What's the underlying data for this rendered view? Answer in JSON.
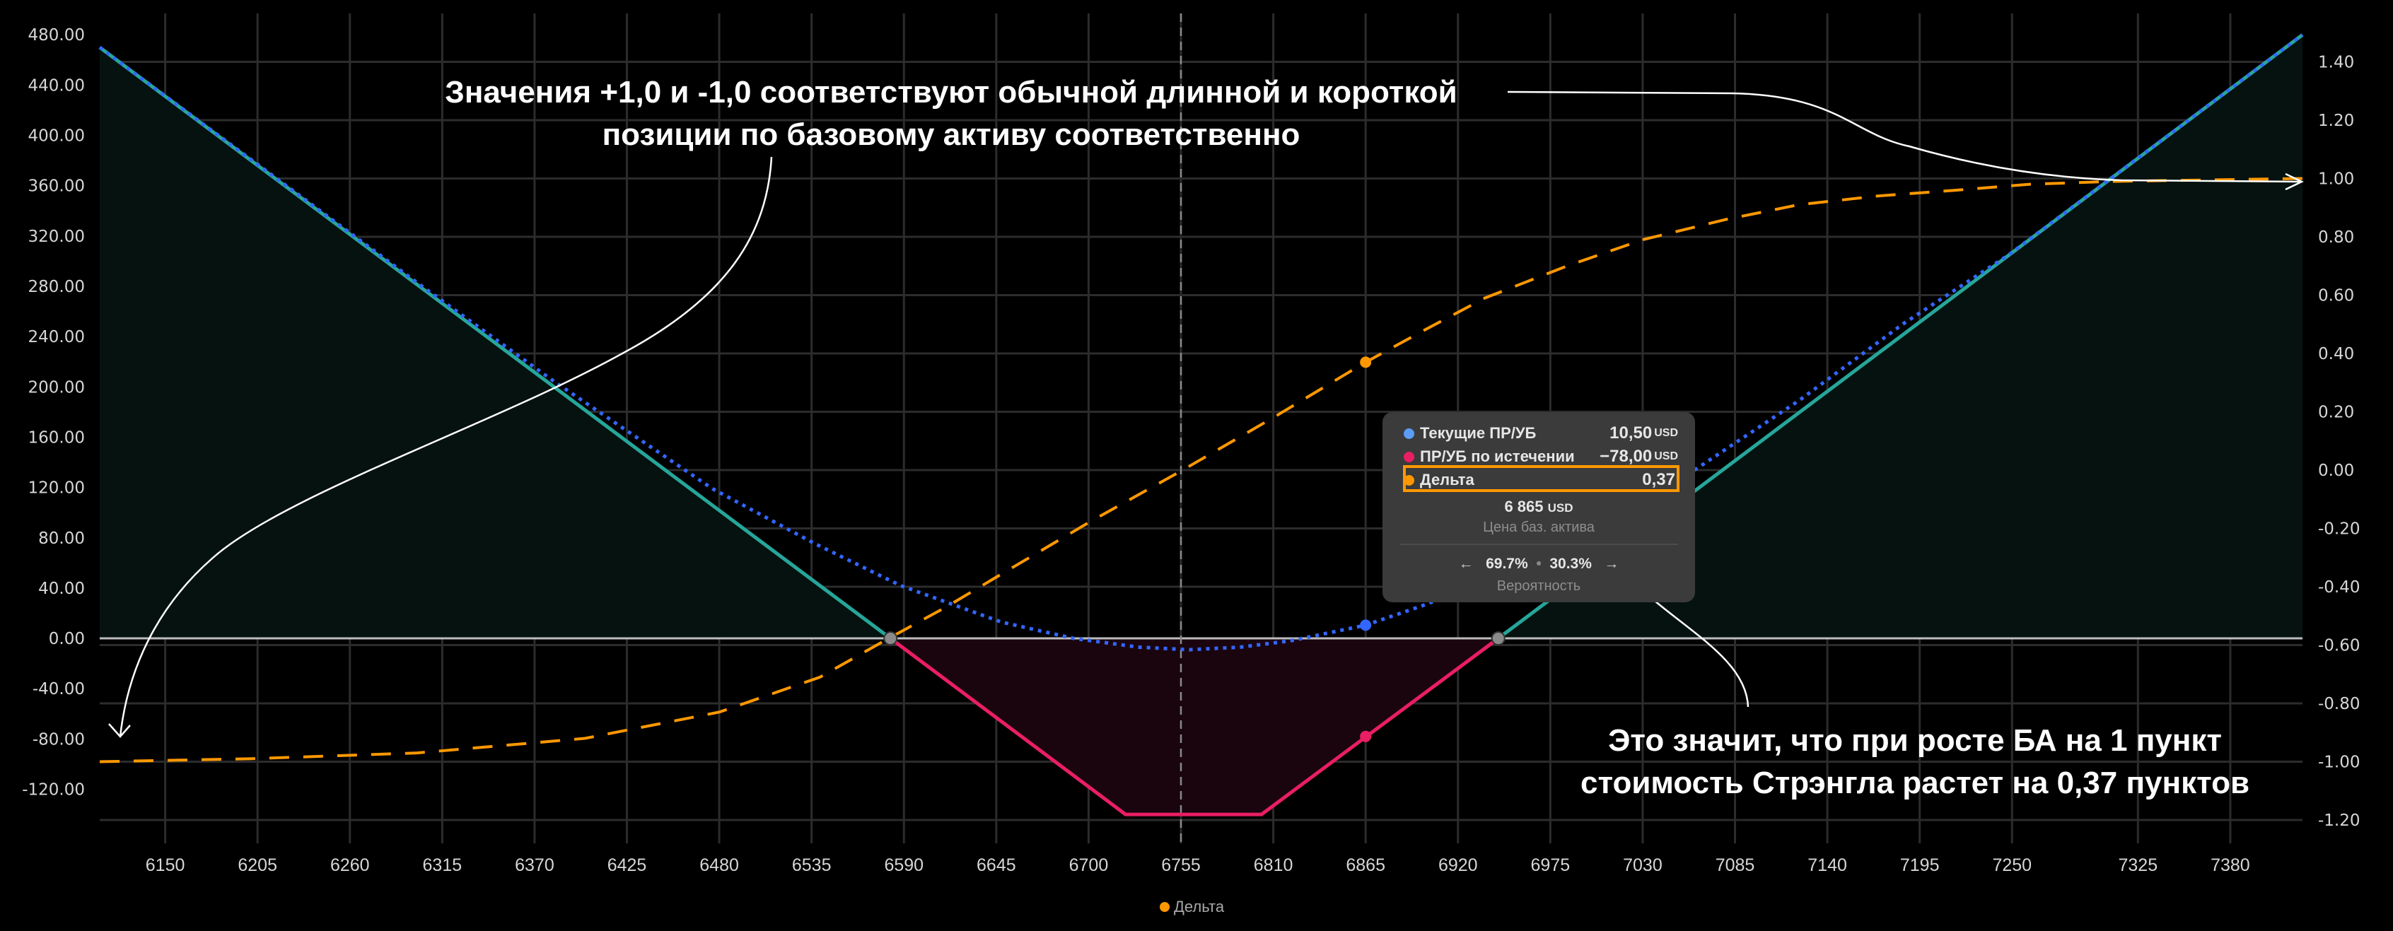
{
  "chart_data": {
    "type": "line",
    "xlim": [
      6111,
      7423
    ],
    "ylim_left": [
      -163,
      497
    ],
    "ylim_right": [
      -1.28,
      1.566
    ],
    "x_ticks": [
      6150,
      6205,
      6260,
      6315,
      6370,
      6425,
      6480,
      6535,
      6590,
      6645,
      6700,
      6755,
      6810,
      6865,
      6920,
      6975,
      7030,
      7085,
      7140,
      7195,
      7250,
      7325,
      7380
    ],
    "y_left_ticks": [
      480,
      440,
      400,
      360,
      320,
      280,
      240,
      200,
      160,
      120,
      80,
      40,
      0,
      -40,
      -80,
      -120
    ],
    "y_left_labels": [
      "480.00",
      "440.00",
      "400.00",
      "360.00",
      "320.00",
      "280.00",
      "240.00",
      "200.00",
      "160.00",
      "120.00",
      "80.00",
      "40.00",
      "0.00",
      "-40.00",
      "-80.00",
      "-120.00"
    ],
    "y_right_ticks": [
      1.4,
      1.2,
      1.0,
      0.8,
      0.6,
      0.4,
      0.2,
      0.0,
      -0.2,
      -0.4,
      -0.6,
      -0.8,
      -1.0,
      -1.2
    ],
    "y_right_labels": [
      "1.40",
      "1.20",
      "1.00",
      "0.80",
      "0.60",
      "0.40",
      "0.20",
      "0.00",
      "-0.20",
      "-0.40",
      "-0.60",
      "-0.80",
      "-1.00",
      "-1.20"
    ],
    "current_price_line": 6755,
    "breakevens": [
      6582,
      6944
    ],
    "series": [
      {
        "name": "ПР/УБ по истечении",
        "axis": "left",
        "color": "#e91e63",
        "profit_color": "#26a69a",
        "points": [
          [
            6111,
            470
          ],
          [
            6722,
            -140
          ],
          [
            6803,
            -140
          ],
          [
            7423,
            480
          ]
        ]
      },
      {
        "name": "Текущие ПР/УБ",
        "axis": "left",
        "color": "#3366ff",
        "points": [
          [
            6111,
            470
          ],
          [
            6304,
            279
          ],
          [
            6382,
            204
          ],
          [
            6476,
            119
          ],
          [
            6536,
            76
          ],
          [
            6588,
            42
          ],
          [
            6648,
            13
          ],
          [
            6691,
            0
          ],
          [
            6730,
            -7
          ],
          [
            6760,
            -9
          ],
          [
            6790,
            -7
          ],
          [
            6820,
            -2
          ],
          [
            6865,
            10.5
          ],
          [
            6901,
            27
          ],
          [
            6960,
            60
          ],
          [
            7010,
            95
          ],
          [
            7061,
            134
          ],
          [
            7123,
            189
          ],
          [
            7185,
            250
          ],
          [
            7248,
            305
          ],
          [
            7310,
            367
          ],
          [
            7423,
            480
          ]
        ]
      },
      {
        "name": "Дельта",
        "axis": "right",
        "color": "#ff9800",
        "points": [
          [
            6111,
            -1.0
          ],
          [
            6200,
            -0.99
          ],
          [
            6300,
            -0.97
          ],
          [
            6400,
            -0.92
          ],
          [
            6480,
            -0.83
          ],
          [
            6540,
            -0.71
          ],
          [
            6580,
            -0.58
          ],
          [
            6615,
            -0.47
          ],
          [
            6650,
            -0.35
          ],
          [
            6700,
            -0.18
          ],
          [
            6756,
            0.0
          ],
          [
            6810,
            0.18
          ],
          [
            6865,
            0.37
          ],
          [
            6900,
            0.48
          ],
          [
            6936,
            0.59
          ],
          [
            6985,
            0.7
          ],
          [
            7030,
            0.79
          ],
          [
            7080,
            0.86
          ],
          [
            7123,
            0.91
          ],
          [
            7170,
            0.94
          ],
          [
            7217,
            0.96
          ],
          [
            7260,
            0.98
          ],
          [
            7310,
            0.99
          ],
          [
            7423,
            1.0
          ]
        ]
      }
    ],
    "highlight_x": 6865,
    "legend": [
      {
        "label": "Дельта",
        "color": "#ff9800"
      }
    ],
    "legend_position": "bottom-center"
  },
  "tooltip": {
    "rows": [
      {
        "label": "Текущие ПР/УБ",
        "value": "10,50",
        "unit": "USD",
        "color": "#5b9cf6"
      },
      {
        "label": "ПР/УБ по истечении",
        "value": "−78,00",
        "unit": "USD",
        "color": "#e91e63"
      },
      {
        "label": "Дельта",
        "value": "0,37",
        "color": "#ff9800"
      }
    ],
    "price": "6 865",
    "price_unit": "USD",
    "price_label": "Цена баз. актива",
    "prob_left": "69.7%",
    "prob_right": "30.3%",
    "prob_label": "Вероятность"
  },
  "annotations": {
    "top": [
      "Значения +1,0 и -1,0 соответствуют обычной длинной и короткой",
      "позиции по базовому активу соответственно"
    ],
    "bottom": [
      "Это значит, что при росте БА на 1 пункт",
      "стоимость Стрэнгла растет на 0,37 пунктов"
    ]
  }
}
